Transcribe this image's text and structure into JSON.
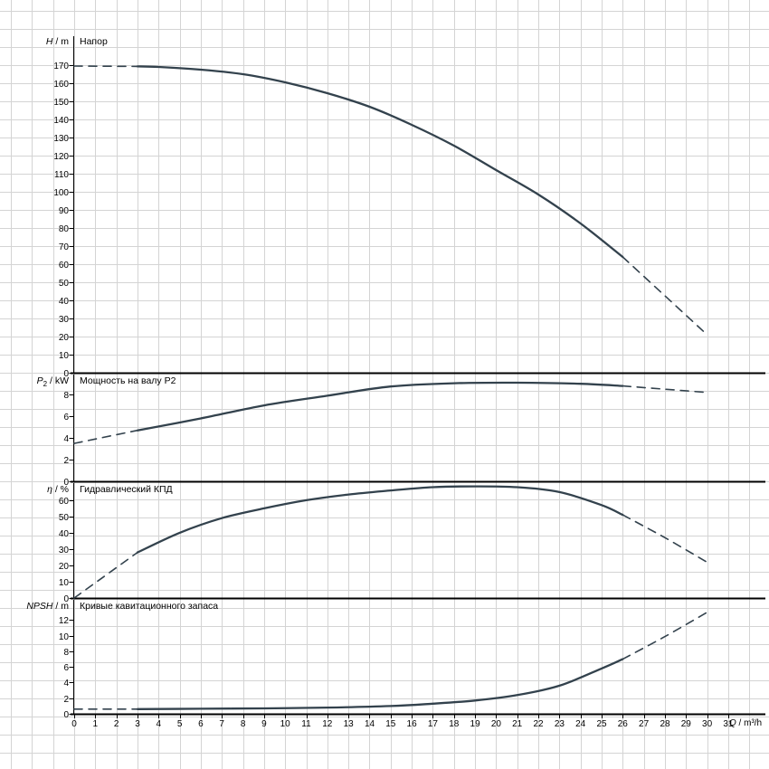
{
  "colors": {
    "background": "#ffffff",
    "grid": "#d4d4d4",
    "axis": "#000000",
    "text": "#000000",
    "curve": "#33424d"
  },
  "x_axis": {
    "label": "Q / m³/h",
    "label_italic": "Q",
    "label_rest": " / m³/h",
    "min": 0,
    "max": 31,
    "tick_step": 1
  },
  "chart_data": [
    {
      "type": "line",
      "title": "Напор",
      "ylabel": "H / m",
      "ylabel_parts": {
        "italic": "H",
        "sub": "",
        "rest": " / m"
      },
      "ylim": [
        0,
        186
      ],
      "ytick_step": 10,
      "ytick_max": 170,
      "xlim": [
        0,
        31
      ],
      "grid": true,
      "solid_range": [
        3,
        26
      ],
      "series": [
        {
          "name": "head",
          "x": [
            0,
            3,
            4,
            6,
            8,
            10,
            12,
            14,
            16,
            18,
            20,
            22,
            24,
            26,
            28,
            30
          ],
          "y": [
            169.5,
            169.3,
            169,
            167.5,
            165,
            160.5,
            154.5,
            147,
            137,
            125.5,
            112,
            98.5,
            82.5,
            64,
            42.5,
            21
          ]
        }
      ]
    },
    {
      "type": "line",
      "title": "Мощность на валу P2",
      "ylabel": "P2 / kW",
      "ylabel_parts": {
        "italic": "P",
        "sub": "2",
        "rest": " / kW"
      },
      "ylim": [
        0,
        9.85
      ],
      "ytick_step": 2,
      "ytick_max": 8,
      "xlim": [
        0,
        31
      ],
      "grid": true,
      "solid_range": [
        3,
        26
      ],
      "series": [
        {
          "name": "shaft-power",
          "x": [
            0,
            3,
            6,
            9,
            12,
            15,
            18,
            21,
            24,
            26,
            28,
            30
          ],
          "y": [
            3.5,
            4.7,
            5.8,
            7.0,
            7.9,
            8.75,
            9.05,
            9.1,
            9.0,
            8.8,
            8.5,
            8.2
          ]
        }
      ]
    },
    {
      "type": "line",
      "title": "Гидравлический КПД",
      "ylabel": "η / %",
      "ylabel_parts": {
        "italic": "η",
        "sub": "",
        "rest": " / %"
      },
      "ylim": [
        0,
        70.5
      ],
      "ytick_step": 10,
      "ytick_max": 60,
      "xlim": [
        0,
        31
      ],
      "grid": true,
      "solid_range": [
        3,
        26
      ],
      "series": [
        {
          "name": "efficiency",
          "x": [
            0,
            3,
            5,
            7,
            9,
            11,
            13,
            15,
            17,
            19,
            21,
            23,
            25,
            26,
            28,
            30
          ],
          "y": [
            0,
            28,
            40,
            49,
            55,
            60,
            63.5,
            66,
            68,
            68.5,
            68,
            65,
            57,
            51,
            37,
            22
          ]
        }
      ]
    },
    {
      "type": "line",
      "title": "Кривые кавитационного запаса",
      "ylabel": "NPSH / m",
      "ylabel_parts": {
        "italic": "NPSH",
        "sub": "",
        "rest": " / m"
      },
      "ylim": [
        0,
        14.6
      ],
      "ytick_step": 2,
      "ytick_max": 12,
      "xlim": [
        0,
        31
      ],
      "grid": true,
      "solid_range": [
        3,
        26
      ],
      "series": [
        {
          "name": "npsh",
          "x": [
            0,
            3,
            6,
            9,
            12,
            15,
            17,
            19,
            21,
            23,
            25,
            26,
            28,
            30
          ],
          "y": [
            0.6,
            0.6,
            0.65,
            0.7,
            0.8,
            1.0,
            1.3,
            1.7,
            2.4,
            3.6,
            5.8,
            7.0,
            9.9,
            13.0
          ]
        }
      ]
    }
  ]
}
